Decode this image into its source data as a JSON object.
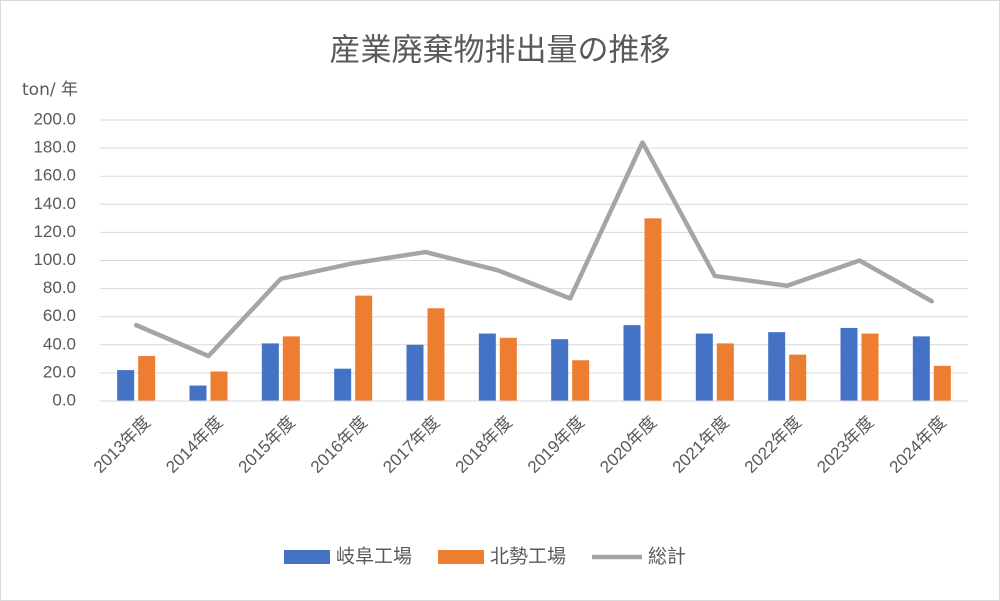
{
  "chart_data": {
    "type": "bar",
    "title": "産業廃棄物排出量の推移",
    "y_label": "ton/ 年",
    "categories": [
      "2013年度",
      "2014年度",
      "2015年度",
      "2016年度",
      "2017年度",
      "2018年度",
      "2019年度",
      "2020年度",
      "2021年度",
      "2022年度",
      "2023年度",
      "2024年度"
    ],
    "series": [
      {
        "name": "岐阜工場",
        "type": "bar",
        "color": "#4472c4",
        "values": [
          22,
          11,
          41,
          23,
          40,
          48,
          44,
          54,
          48,
          49,
          52,
          46
        ]
      },
      {
        "name": "北勢工場",
        "type": "bar",
        "color": "#ed7d31",
        "values": [
          32,
          21,
          46,
          75,
          66,
          45,
          29,
          130,
          41,
          33,
          48,
          25
        ]
      },
      {
        "name": "総計",
        "type": "line",
        "color": "#a5a5a5",
        "values": [
          54,
          32,
          87,
          98,
          106,
          93,
          73,
          184,
          89,
          82,
          100,
          71
        ]
      }
    ],
    "ylim": [
      0,
      200
    ],
    "yticks": [
      {
        "value": 0,
        "label": "0.0"
      },
      {
        "value": 20,
        "label": "20.0"
      },
      {
        "value": 40,
        "label": "40.0"
      },
      {
        "value": 60,
        "label": "60.0"
      },
      {
        "value": 80,
        "label": "80.0"
      },
      {
        "value": 100,
        "label": "100.0"
      },
      {
        "value": 120,
        "label": "120.0"
      },
      {
        "value": 140,
        "label": "140.0"
      },
      {
        "value": 160,
        "label": "160.0"
      },
      {
        "value": 180,
        "label": "180.0"
      },
      {
        "value": 200,
        "label": "200.0"
      }
    ],
    "grid": true,
    "legend": "bottom"
  }
}
